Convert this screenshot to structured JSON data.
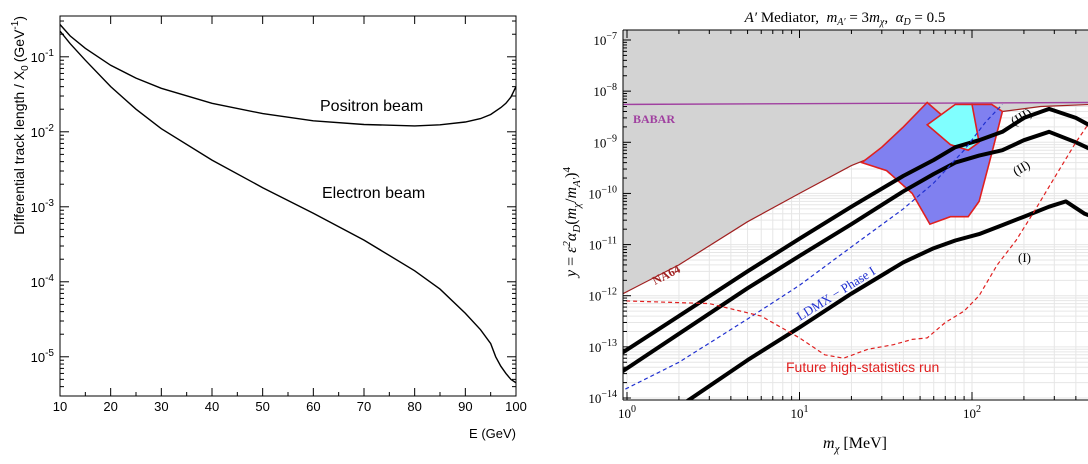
{
  "chart_data": [
    {
      "type": "line",
      "xlabel": "E (GeV)",
      "ylabel": "Differential track length / X",
      "ylabel_sub": "0",
      "ylabel_unit": "(GeV",
      "ylabel_sup": "-1",
      "ylabel_close": ")",
      "x_scale": "linear",
      "y_scale": "log",
      "xlim": [
        10,
        100
      ],
      "ylim": [
        3e-06,
        0.35
      ],
      "x_ticks": [
        10,
        20,
        30,
        40,
        50,
        60,
        70,
        80,
        90,
        100
      ],
      "y_ticks": [
        {
          "value": 0.1,
          "base": "10",
          "exp": "-1"
        },
        {
          "value": 0.01,
          "base": "10",
          "exp": "-2"
        },
        {
          "value": 0.001,
          "base": "10",
          "exp": "-3"
        },
        {
          "value": 0.0001,
          "base": "10",
          "exp": "-4"
        },
        {
          "value": 1e-05,
          "base": "10",
          "exp": "-5"
        }
      ],
      "series": [
        {
          "name": "Positron beam",
          "x": [
            10,
            12,
            15,
            20,
            25,
            30,
            40,
            50,
            60,
            70,
            80,
            85,
            90,
            93,
            95,
            97,
            98,
            99,
            100
          ],
          "y": [
            0.27,
            0.19,
            0.13,
            0.077,
            0.052,
            0.038,
            0.024,
            0.0175,
            0.014,
            0.0125,
            0.012,
            0.0124,
            0.0135,
            0.015,
            0.017,
            0.021,
            0.024,
            0.029,
            0.04
          ]
        },
        {
          "name": "Electron beam",
          "x": [
            10,
            12,
            15,
            20,
            25,
            30,
            40,
            50,
            60,
            70,
            80,
            85,
            90,
            93,
            95,
            96,
            97,
            98,
            99,
            100
          ],
          "y": [
            0.22,
            0.15,
            0.09,
            0.04,
            0.02,
            0.011,
            0.0042,
            0.0018,
            0.00082,
            0.00036,
            0.00014,
            8e-05,
            3.8e-05,
            2.3e-05,
            1.5e-05,
            1e-05,
            7.5e-06,
            6e-06,
            5e-06,
            4.5e-06
          ]
        }
      ],
      "annotations": [
        "Positron beam",
        "Electron beam"
      ]
    },
    {
      "type": "area",
      "title": "A′ Mediator, m_A′ = 3m_χ, α_D = 0.5",
      "xlabel": "m_χ [MeV]",
      "ylabel": "y = ε² α_D (m_χ/m_A′)⁴",
      "x_scale": "log",
      "y_scale": "log",
      "xlim": [
        0.9,
        500
      ],
      "ylim": [
        6e-15,
        3e-07
      ],
      "x_ticks": [
        {
          "value": 1,
          "base": "10",
          "exp": "0"
        },
        {
          "value": 10,
          "base": "10",
          "exp": "1"
        },
        {
          "value": 100,
          "base": "10",
          "exp": "2"
        }
      ],
      "y_ticks": [
        {
          "value": 1e-07,
          "base": "10",
          "exp": "−7"
        },
        {
          "value": 1e-08,
          "base": "10",
          "exp": "−8"
        },
        {
          "value": 1e-09,
          "base": "10",
          "exp": "−9"
        },
        {
          "value": 1e-10,
          "base": "10",
          "exp": "−10"
        },
        {
          "value": 1e-11,
          "base": "10",
          "exp": "−11"
        },
        {
          "value": 1e-12,
          "base": "10",
          "exp": "−12"
        },
        {
          "value": 1e-13,
          "base": "10",
          "exp": "−13"
        },
        {
          "value": 1e-14,
          "base": "10",
          "exp": "−14"
        }
      ],
      "grid": true,
      "regions": [
        {
          "name": "BABAR",
          "color": "#d3d3d3",
          "line_color": "#a040a0",
          "x": [
            0.9,
            500
          ],
          "y": [
            5.5e-09,
            6e-09
          ]
        },
        {
          "name": "NA64",
          "color": "#d3d3d3",
          "line_color": "#a02020",
          "x": [
            0.9,
            2,
            5,
            10,
            20,
            40,
            80,
            150,
            250,
            500
          ],
          "y": [
            1e-12,
            4e-12,
            2.8e-11,
            1e-10,
            3.5e-10,
            9e-10,
            2.2e-09,
            4e-09,
            5e-09,
            5.5e-09
          ]
        },
        {
          "name": "",
          "color": "#8080f0",
          "x": [
            23,
            32,
            45,
            57,
            75,
            95,
            110,
            130,
            150,
            130,
            100,
            80,
            55,
            40,
            30,
            23
          ],
          "y": [
            4e-10,
            2.8e-10,
            1e-10,
            2.5e-11,
            3.5e-11,
            3.5e-11,
            7e-11,
            6e-10,
            4e-09,
            5.5e-09,
            5.5e-09,
            2e-09,
            6e-09,
            2e-09,
            8e-10,
            4e-10
          ]
        },
        {
          "name": "",
          "color": "#80ffff",
          "x": [
            55,
            75,
            95,
            110,
            100,
            80,
            55
          ],
          "y": [
            2.2e-09,
            9e-10,
            7e-10,
            1e-09,
            5.5e-09,
            5.5e-09,
            2.2e-09
          ]
        }
      ],
      "series": [
        {
          "name": "(III)",
          "style": "solid",
          "color": "#000000",
          "x": [
            0.9,
            2,
            5,
            10,
            20,
            40,
            60,
            80,
            110,
            150,
            200,
            280,
            400,
            500
          ],
          "y": [
            7e-14,
            4e-13,
            3e-12,
            1.3e-11,
            5.5e-11,
            2.2e-10,
            4.5e-10,
            8e-10,
            1.1e-09,
            1.6e-09,
            3e-09,
            4.5e-09,
            3e-09,
            2e-09
          ]
        },
        {
          "name": "(II)",
          "style": "solid",
          "color": "#000000",
          "x": [
            0.9,
            2,
            5,
            10,
            20,
            40,
            60,
            80,
            110,
            150,
            200,
            280,
            400,
            500
          ],
          "y": [
            3e-14,
            1.8e-13,
            1.4e-12,
            6e-12,
            2.5e-11,
            1.1e-10,
            2.4e-10,
            4e-10,
            5.5e-10,
            7e-10,
            1.1e-09,
            1.6e-09,
            1e-09,
            7e-10
          ]
        },
        {
          "name": "(I)",
          "style": "solid",
          "color": "#000000",
          "x": [
            1.9,
            5,
            10,
            20,
            40,
            60,
            80,
            110,
            150,
            200,
            280,
            350,
            450,
            500
          ],
          "y": [
            6e-15,
            5.5e-14,
            2.4e-13,
            1.1e-12,
            4.5e-12,
            8.5e-12,
            1.2e-11,
            1.6e-11,
            2.4e-11,
            3.5e-11,
            5.5e-11,
            7e-11,
            4e-11,
            3.5e-11
          ]
        },
        {
          "name": "LDMX − Phase I",
          "style": "dashed",
          "color": "#2030d0",
          "x": [
            0.9,
            2,
            5,
            10,
            20,
            40,
            60,
            90,
            120,
            150
          ],
          "y": [
            1.3e-14,
            5e-14,
            3.5e-13,
            1.6e-12,
            9e-12,
            5e-11,
            1.6e-10,
            7e-10,
            2.5e-09,
            5.5e-09
          ]
        },
        {
          "name": "Future high-statistics run",
          "style": "dashed",
          "color": "#e02020",
          "x": [
            0.9,
            3,
            6,
            10,
            14,
            18,
            25,
            35,
            45,
            55,
            70,
            90,
            110,
            140,
            180,
            230,
            300,
            400,
            500
          ],
          "y": [
            8e-13,
            7e-13,
            4e-13,
            1.5e-13,
            7e-14,
            6e-14,
            9e-14,
            1.1e-13,
            1.4e-13,
            1.5e-13,
            3e-13,
            5e-13,
            1e-12,
            4e-12,
            1.2e-11,
            4.5e-11,
            2e-10,
            1e-09,
            3e-09
          ]
        }
      ],
      "labels": [
        "BABAR",
        "NA64",
        "LDMX − Phase I",
        "Future high-statistics run",
        "(III)",
        "(II)",
        "(I)"
      ]
    }
  ]
}
